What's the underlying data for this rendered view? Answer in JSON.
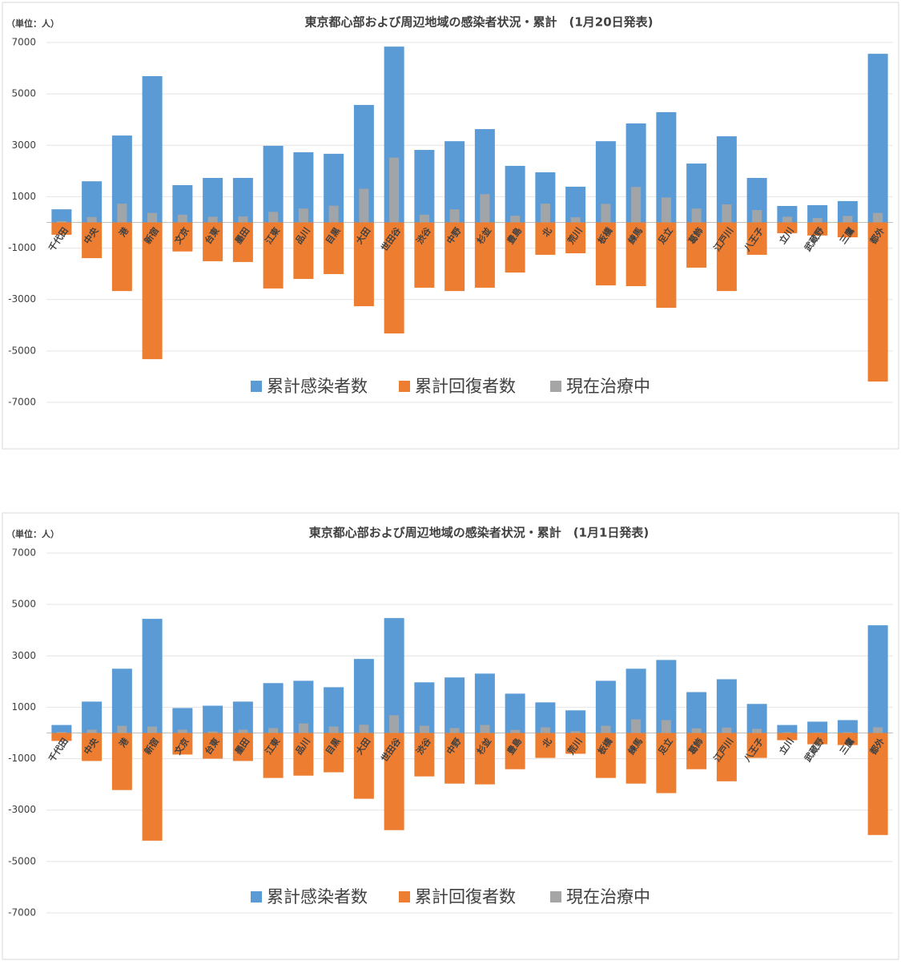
{
  "chart_data": [
    {
      "type": "bar",
      "title": "東京都心部および周辺地域の感染者状況・累計　(1月20日発表)",
      "y_label": "（単位：人）",
      "categories": [
        "千代田",
        "中央",
        "港",
        "新宿",
        "文京",
        "台東",
        "墨田",
        "江東",
        "品川",
        "目黒",
        "大田",
        "世田谷",
        "渋谷",
        "中野",
        "杉並",
        "豊島",
        "北",
        "荒川",
        "板橋",
        "練馬",
        "足立",
        "葛飾",
        "江戸川",
        "八王子",
        "立川",
        "武蔵野",
        "三鷹",
        "都外"
      ],
      "series": [
        {
          "name": "累計感染者数",
          "color": "#5b9bd5",
          "values": [
            510,
            1600,
            3380,
            5690,
            1450,
            1730,
            1730,
            2980,
            2730,
            2670,
            4570,
            6840,
            2820,
            3160,
            3630,
            2200,
            1950,
            1390,
            3160,
            3850,
            4290,
            2290,
            3350,
            1730,
            640,
            670,
            830,
            6560
          ]
        },
        {
          "name": "累計回復者数",
          "color": "#ed7d31",
          "values": [
            -480,
            -1390,
            -2670,
            -5320,
            -1130,
            -1510,
            -1540,
            -2570,
            -2200,
            -2010,
            -3260,
            -4320,
            -2540,
            -2670,
            -2540,
            -1950,
            -1260,
            -1200,
            -2450,
            -2480,
            -3320,
            -1760,
            -2670,
            -1260,
            -420,
            -510,
            -580,
            -6190
          ]
        },
        {
          "name": "現在治療中",
          "color": "#a5a5a5",
          "values": [
            50,
            210,
            730,
            370,
            300,
            220,
            230,
            410,
            540,
            650,
            1310,
            2520,
            300,
            510,
            1100,
            260,
            730,
            200,
            720,
            1380,
            970,
            540,
            700,
            480,
            220,
            170,
            250,
            370
          ]
        }
      ],
      "ylim": [
        -7000,
        7000
      ],
      "yticks": [
        7000,
        5000,
        3000,
        1000,
        -1000,
        -3000,
        -5000,
        -7000
      ],
      "grid": true,
      "legend": "bottom"
    },
    {
      "type": "bar",
      "title": "東京都心部および周辺地域の感染者状況・累計　(1月1日発表)",
      "y_label": "（単位：人）",
      "categories": [
        "千代田",
        "中央",
        "港",
        "新宿",
        "文京",
        "台東",
        "墨田",
        "江東",
        "品川",
        "目黒",
        "大田",
        "世田谷",
        "渋谷",
        "中野",
        "杉並",
        "豊島",
        "北",
        "荒川",
        "板橋",
        "練馬",
        "足立",
        "葛飾",
        "江戸川",
        "八王子",
        "立川",
        "武蔵野",
        "三鷹",
        "都外"
      ],
      "series": [
        {
          "name": "累計感染者数",
          "color": "#5b9bd5",
          "values": [
            310,
            1220,
            2500,
            4440,
            970,
            1060,
            1220,
            1940,
            2030,
            1780,
            2880,
            4470,
            1970,
            2160,
            2310,
            1530,
            1190,
            880,
            2030,
            2500,
            2840,
            1590,
            2090,
            1130,
            310,
            440,
            500,
            4190
          ]
        },
        {
          "name": "累計回復者数",
          "color": "#ed7d31",
          "values": [
            -310,
            -1090,
            -2220,
            -4190,
            -840,
            -1000,
            -1090,
            -1750,
            -1660,
            -1530,
            -2560,
            -3780,
            -1690,
            -1970,
            -2000,
            -1410,
            -970,
            -810,
            -1750,
            -1970,
            -2340,
            -1410,
            -1880,
            -970,
            -280,
            -440,
            -470,
            -3970
          ]
        },
        {
          "name": "現在治療中",
          "color": "#a5a5a5",
          "values": [
            40,
            130,
            280,
            250,
            130,
            60,
            130,
            190,
            370,
            250,
            320,
            690,
            280,
            190,
            310,
            120,
            220,
            70,
            280,
            530,
            500,
            180,
            210,
            160,
            30,
            20,
            30,
            220
          ]
        }
      ],
      "ylim": [
        -7000,
        7000
      ],
      "yticks": [
        7000,
        5000,
        3000,
        1000,
        -1000,
        -3000,
        -5000,
        -7000
      ],
      "grid": true,
      "legend": "bottom"
    }
  ]
}
